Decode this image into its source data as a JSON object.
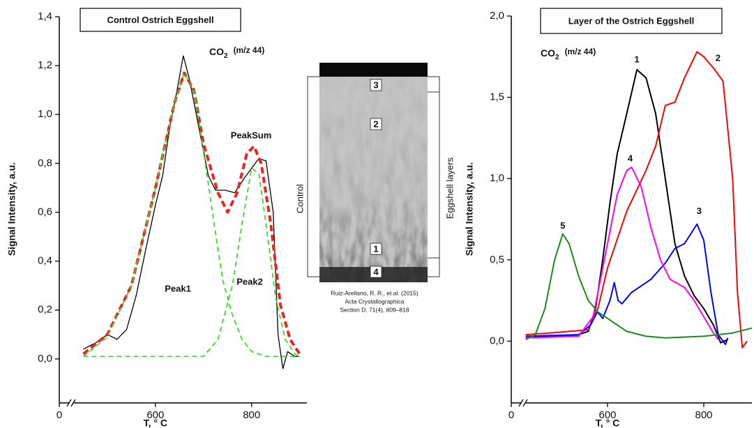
{
  "chart_data": [
    {
      "type": "line",
      "title": "Control Ostrich Eggshell",
      "gas_label": "CO",
      "gas_subscript": "2",
      "mass_label": "(m/z 44)",
      "xlabel": "T, ° C",
      "ylabel": "Signal Intensity, a.u.",
      "xlim": [
        0,
        915
      ],
      "x_break": [
        0,
        400
      ],
      "xticks": [
        0,
        600,
        800
      ],
      "ylim": [
        -0.18,
        1.4
      ],
      "yticks": [
        {
          "value": 0.0,
          "label": "0,0"
        },
        {
          "value": 0.2,
          "label": "0,2"
        },
        {
          "value": 0.4,
          "label": "0,4"
        },
        {
          "value": 0.6,
          "label": "0,6"
        },
        {
          "value": 0.8,
          "label": "0,8"
        },
        {
          "value": 1.0,
          "label": "1,0"
        },
        {
          "value": 1.2,
          "label": "1,2"
        },
        {
          "value": 1.4,
          "label": "1,4"
        }
      ],
      "series": [
        {
          "color": "#000000",
          "dashed": false,
          "x": [
            450,
            480,
            500,
            520,
            540,
            560,
            580,
            600,
            615,
            630,
            645,
            658,
            670,
            690,
            710,
            725,
            745,
            765,
            785,
            800,
            815,
            830,
            845,
            855,
            865,
            875,
            890,
            900
          ],
          "values": [
            0.04,
            0.07,
            0.1,
            0.08,
            0.12,
            0.26,
            0.45,
            0.63,
            0.75,
            0.95,
            1.1,
            1.24,
            1.15,
            0.95,
            0.75,
            0.69,
            0.69,
            0.68,
            0.74,
            0.78,
            0.82,
            0.81,
            0.6,
            0.1,
            -0.04,
            0.03,
            0.01,
            0.01
          ]
        },
        {
          "name": "PeakSum",
          "color": "#ee2222",
          "dashed": true,
          "x": [
            450,
            500,
            550,
            600,
            640,
            660,
            680,
            700,
            730,
            750,
            770,
            790,
            805,
            820,
            840,
            860,
            880,
            900
          ],
          "values": [
            0.02,
            0.1,
            0.3,
            0.7,
            1.05,
            1.17,
            1.1,
            0.88,
            0.68,
            0.6,
            0.68,
            0.84,
            0.87,
            0.8,
            0.55,
            0.22,
            0.08,
            0.02
          ]
        },
        {
          "name": "Peak1",
          "color": "#33dd22",
          "dashed": true,
          "x": [
            450,
            500,
            550,
            600,
            640,
            660,
            680,
            700,
            720,
            740,
            760,
            780,
            800,
            830,
            900
          ],
          "values": [
            0.01,
            0.09,
            0.3,
            0.7,
            1.05,
            1.17,
            1.1,
            0.85,
            0.58,
            0.32,
            0.18,
            0.08,
            0.03,
            0.01,
            0.01
          ]
        },
        {
          "name": "Peak2",
          "color": "#33dd22",
          "dashed": true,
          "x": [
            450,
            700,
            730,
            760,
            780,
            800,
            815,
            830,
            850,
            870,
            890,
            900
          ],
          "values": [
            0.01,
            0.01,
            0.08,
            0.3,
            0.55,
            0.78,
            0.76,
            0.55,
            0.25,
            0.08,
            0.02,
            0.01
          ]
        }
      ]
    },
    {
      "type": "line",
      "title": "Layer of the Ostrich Eggshell",
      "gas_label": "CO",
      "gas_subscript": "2",
      "mass_label": "(m/z 44)",
      "xlabel": "T, ° C",
      "ylabel": "Signal Intensity, a.u.",
      "xlim": [
        0,
        900
      ],
      "x_break": [
        0,
        400
      ],
      "xticks": [
        0,
        600,
        800
      ],
      "ylim": [
        -0.38,
        2.0
      ],
      "yticks": [
        {
          "value": 0.0,
          "label": "0,0"
        },
        {
          "value": 0.5,
          "label": "0,5"
        },
        {
          "value": 1.0,
          "label": "1,0"
        },
        {
          "value": 1.5,
          "label": "1,5"
        },
        {
          "value": 2.0,
          "label": "2,0"
        }
      ],
      "series": [
        {
          "name": "1",
          "color": "#000000",
          "x": [
            430,
            500,
            540,
            560,
            575,
            590,
            605,
            620,
            640,
            661,
            680,
            700,
            720,
            740,
            760,
            780,
            800,
            820,
            835,
            850
          ],
          "values": [
            0.02,
            0.03,
            0.04,
            0.06,
            0.2,
            0.5,
            0.85,
            1.15,
            1.4,
            1.67,
            1.62,
            1.4,
            1.0,
            0.6,
            0.4,
            0.28,
            0.2,
            0.1,
            -0.01,
            0.01
          ]
        },
        {
          "name": "2",
          "color": "#ff0000",
          "x": [
            430,
            480,
            520,
            560,
            580,
            600,
            640,
            680,
            700,
            720,
            740,
            760,
            786,
            800,
            820,
            840,
            860,
            870,
            880,
            890
          ],
          "values": [
            0.04,
            0.05,
            0.06,
            0.07,
            0.2,
            0.45,
            0.8,
            1.05,
            1.2,
            1.45,
            1.47,
            1.62,
            1.78,
            1.75,
            1.68,
            1.6,
            1.0,
            0.3,
            -0.04,
            0.0
          ]
        },
        {
          "name": "3",
          "color": "#0000ff",
          "x": [
            430,
            540,
            565,
            579,
            590,
            605,
            614,
            622,
            630,
            650,
            690,
            720,
            740,
            760,
            786,
            800,
            815,
            830,
            845,
            850
          ],
          "values": [
            0.03,
            0.04,
            0.1,
            0.18,
            0.14,
            0.25,
            0.36,
            0.25,
            0.23,
            0.3,
            0.38,
            0.48,
            0.57,
            0.6,
            0.72,
            0.62,
            0.3,
            0.04,
            -0.02,
            0.02
          ]
        },
        {
          "name": "4",
          "color": "#ff00ff",
          "x": [
            430,
            540,
            570,
            600,
            620,
            640,
            650,
            670,
            690,
            710,
            730,
            760,
            780,
            800,
            820,
            830
          ],
          "values": [
            0.02,
            0.03,
            0.15,
            0.6,
            0.9,
            1.05,
            1.07,
            0.95,
            0.7,
            0.5,
            0.38,
            0.33,
            0.25,
            0.15,
            0.05,
            0.01
          ]
        },
        {
          "name": "5",
          "color": "#1a8a1a",
          "x": [
            430,
            450,
            470,
            490,
            507,
            520,
            540,
            560,
            580,
            610,
            640,
            680,
            720,
            800,
            860,
            900
          ],
          "values": [
            0.01,
            0.04,
            0.2,
            0.5,
            0.66,
            0.6,
            0.4,
            0.25,
            0.18,
            0.12,
            0.06,
            0.03,
            0.02,
            0.03,
            0.05,
            0.08
          ]
        }
      ]
    }
  ],
  "micrograph": {
    "layer_labels": [
      "3",
      "2",
      "1",
      "4"
    ],
    "left_bracket": "Control",
    "right_bracket": "Eggshell layers",
    "citation": [
      "Ruiz-Arellano, R. R., et al. (2015)",
      "Acta Crystallographica",
      "Section D, 71(4), 809–818"
    ]
  }
}
